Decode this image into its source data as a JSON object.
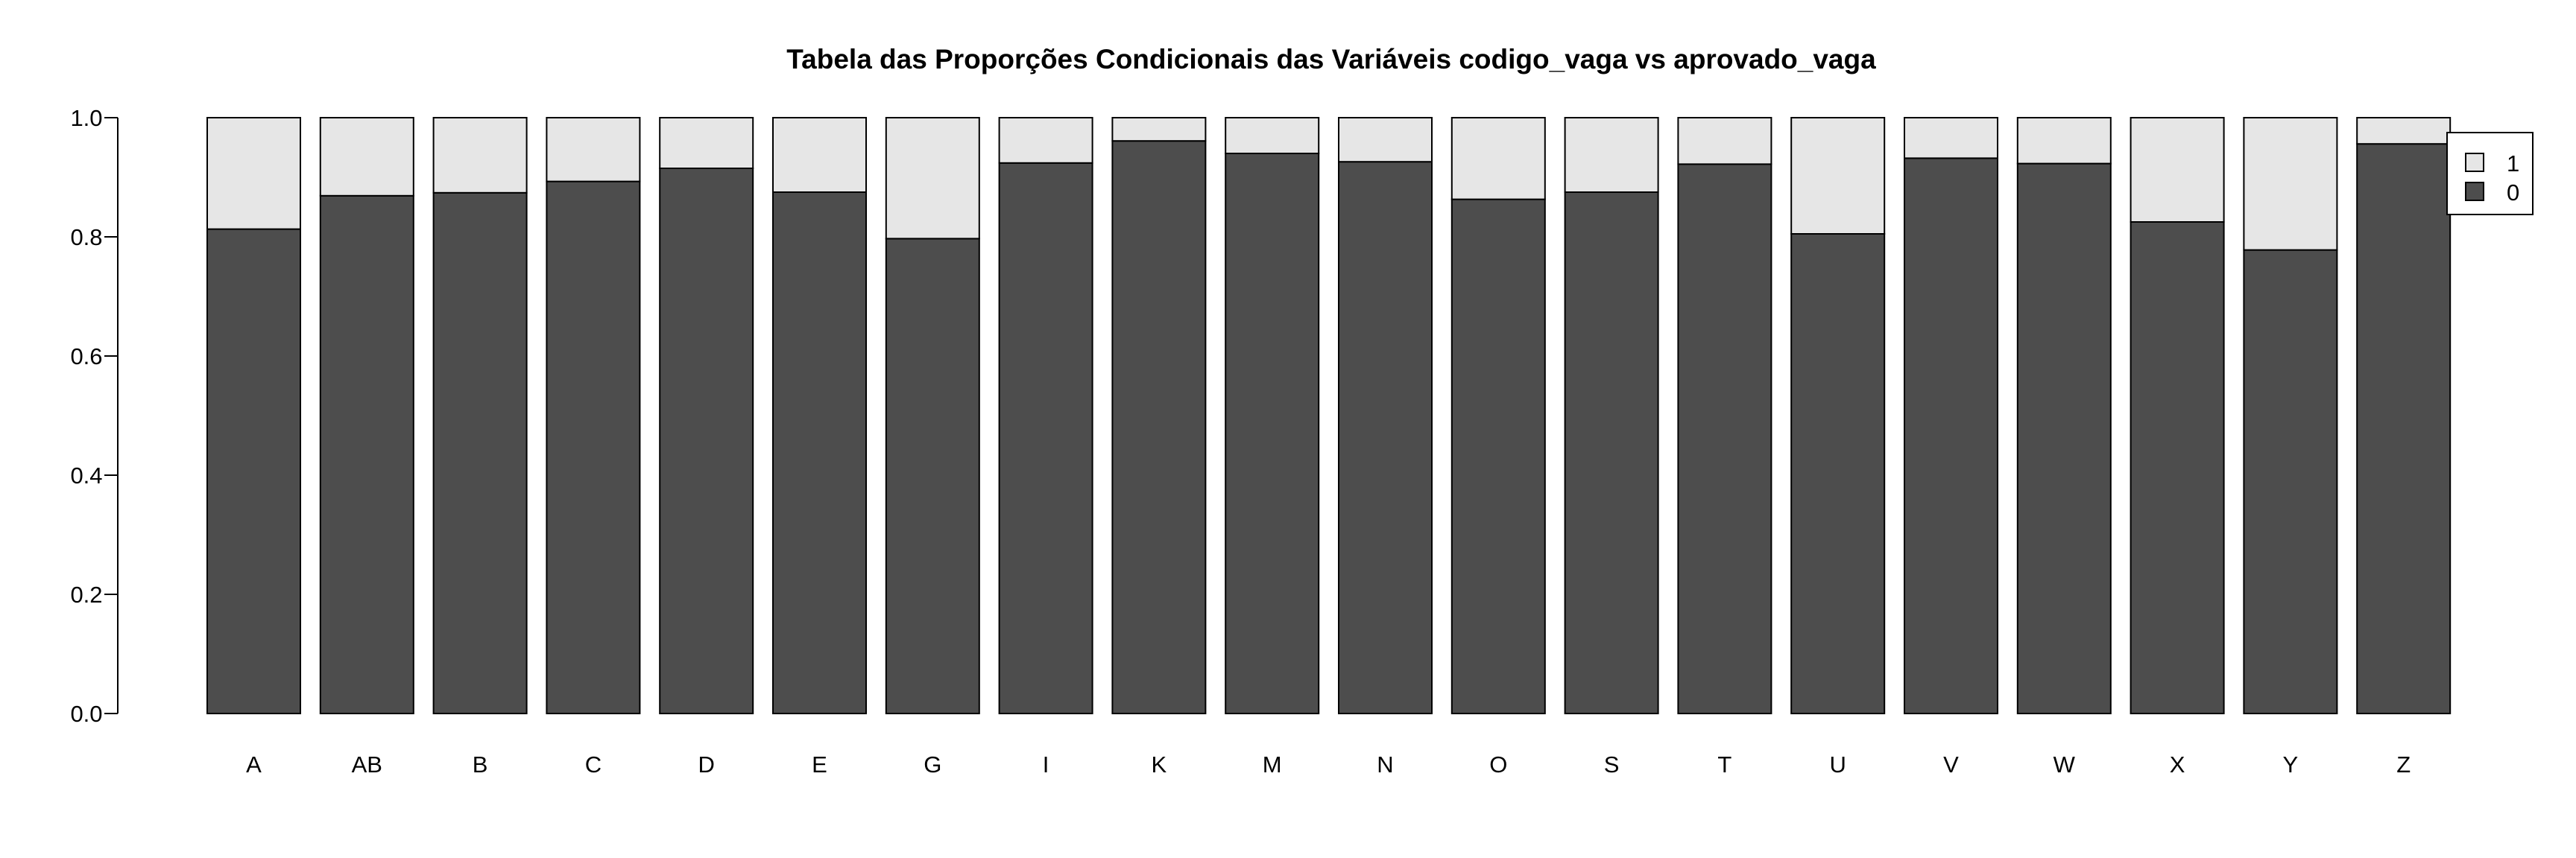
{
  "chart_data": {
    "type": "bar",
    "stacked": true,
    "title": "Tabela das Proporções Condicionais das Variáveis codigo_vaga vs aprovado_vaga",
    "xlabel": "",
    "ylabel": "",
    "ylim": [
      0,
      1
    ],
    "yticks": [
      "0.0",
      "0.2",
      "0.4",
      "0.6",
      "0.8",
      "1.0"
    ],
    "categories": [
      "A",
      "AB",
      "B",
      "C",
      "D",
      "E",
      "G",
      "I",
      "K",
      "M",
      "N",
      "O",
      "S",
      "T",
      "U",
      "V",
      "W",
      "X",
      "Y",
      "Z"
    ],
    "series": [
      {
        "name": "0",
        "color": "#4d4d4d",
        "values": [
          0.813,
          0.869,
          0.874,
          0.893,
          0.915,
          0.875,
          0.797,
          0.924,
          0.961,
          0.94,
          0.926,
          0.863,
          0.875,
          0.922,
          0.805,
          0.932,
          0.923,
          0.825,
          0.778,
          0.956
        ]
      },
      {
        "name": "1",
        "color": "#e6e6e6",
        "values": [
          0.187,
          0.131,
          0.126,
          0.107,
          0.085,
          0.125,
          0.203,
          0.076,
          0.039,
          0.06,
          0.074,
          0.137,
          0.125,
          0.078,
          0.195,
          0.068,
          0.077,
          0.175,
          0.222,
          0.044
        ]
      }
    ],
    "legend": {
      "position": "top-right",
      "entries": [
        {
          "label": "1",
          "color": "#e6e6e6"
        },
        {
          "label": "0",
          "color": "#4d4d4d"
        }
      ]
    }
  }
}
